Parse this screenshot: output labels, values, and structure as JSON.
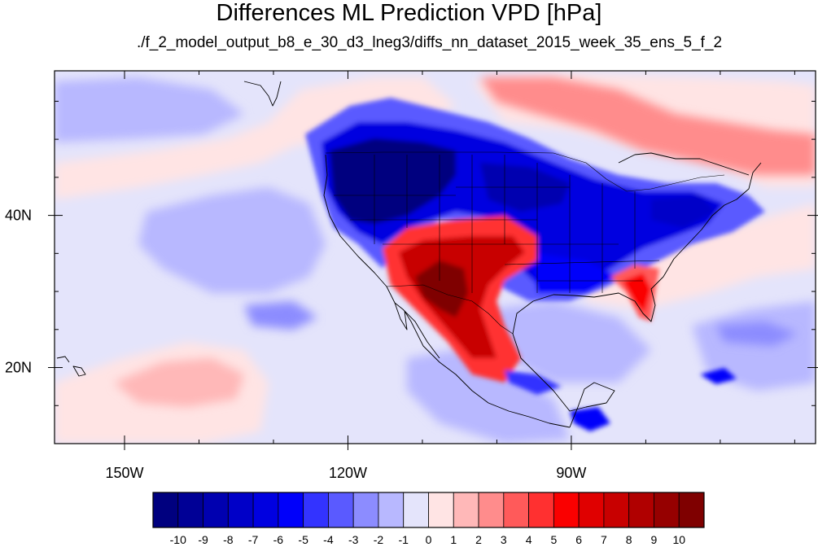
{
  "title": "Differences ML Prediction VPD [hPa]",
  "subtitle": "./f_2_model_output_b8_e_30_d3_lneg3/diffs_nn_dataset_2015_week_35_ens_5_f_2",
  "map": {
    "lon_range": [
      -159.4,
      -57.2
    ],
    "lat_range": [
      10,
      59
    ],
    "lon_ticks": [
      {
        "value": -150,
        "label": "150W"
      },
      {
        "value": -120,
        "label": "120W"
      },
      {
        "value": -90,
        "label": "90W"
      }
    ],
    "lat_ticks": [
      {
        "value": 20,
        "label": "20N"
      },
      {
        "value": 40,
        "label": "40N"
      }
    ],
    "minor_lon_step": 10,
    "minor_lat_step": 5
  },
  "colorbar": {
    "labels": [
      "-10",
      "-9",
      "-8",
      "-7",
      "-6",
      "-5",
      "-4",
      "-3",
      "-2",
      "-1",
      "0",
      "1",
      "2",
      "3",
      "4",
      "5",
      "6",
      "7",
      "8",
      "9",
      "10"
    ],
    "colors": [
      "#00007f",
      "#000096",
      "#0000b0",
      "#0000c8",
      "#0000e0",
      "#0000fa",
      "#3333ff",
      "#5a5aff",
      "#8c8cff",
      "#b8b8ff",
      "#e4e4fb",
      "#ffe4e4",
      "#ffb8b8",
      "#ff8c8c",
      "#ff5a5a",
      "#ff3030",
      "#fa0000",
      "#e00000",
      "#c80000",
      "#b00000",
      "#960000",
      "#7f0000"
    ]
  }
}
